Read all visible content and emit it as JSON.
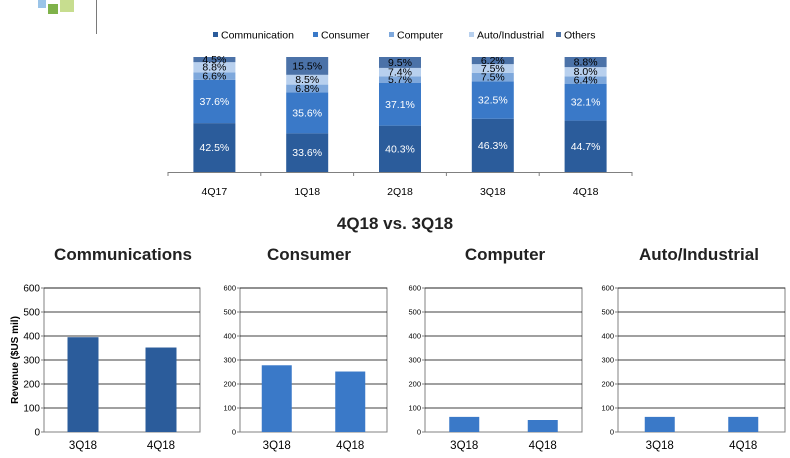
{
  "chart_data": [
    {
      "type": "bar",
      "stacked": true,
      "categories": [
        "4Q17",
        "1Q18",
        "2Q18",
        "3Q18",
        "4Q18"
      ],
      "series": [
        {
          "name": "Communication",
          "color": "#2b5c9b",
          "values": [
            42.5,
            33.6,
            40.3,
            46.3,
            44.7
          ]
        },
        {
          "name": "Consumer",
          "color": "#3a79c8",
          "values": [
            37.6,
            35.6,
            37.1,
            32.5,
            32.1
          ]
        },
        {
          "name": "Computer",
          "color": "#7ea8dc",
          "values": [
            6.6,
            6.8,
            5.7,
            7.5,
            6.4
          ]
        },
        {
          "name": "Auto/Industrial",
          "color": "#b8d0ee",
          "values": [
            8.8,
            8.5,
            7.4,
            7.5,
            8.0
          ]
        },
        {
          "name": "Others",
          "color": "#4b72a8",
          "values": [
            4.5,
            15.5,
            9.5,
            6.2,
            8.8
          ]
        }
      ],
      "value_labels": [
        [
          "42.5%",
          "37.6%",
          "6.6%",
          "8.8%",
          "4.5%"
        ],
        [
          "33.6%",
          "35.6%",
          "6.8%",
          "8.5%",
          "15.5%"
        ],
        [
          "40.3%",
          "37.1%",
          "5.7%",
          "7.4%",
          "9.5%"
        ],
        [
          "46.3%",
          "32.5%",
          "7.5%",
          "7.5%",
          "6.2%"
        ],
        [
          "44.7%",
          "32.1%",
          "6.4%",
          "8.0%",
          "8.8%"
        ]
      ],
      "ylim": [
        0,
        100
      ],
      "legend_position": "top"
    },
    {
      "type": "bar",
      "title": "Communications",
      "ylabel": "Revenue ($US mil)",
      "categories": [
        "3Q18",
        "4Q18"
      ],
      "values": [
        395,
        352
      ],
      "color": "#2b5c9b",
      "ylim": [
        0,
        600
      ],
      "yticks": [
        "0",
        "100",
        "200",
        "300",
        "400",
        "500",
        "600"
      ],
      "grid": true
    },
    {
      "type": "bar",
      "title": "Consumer",
      "categories": [
        "3Q18",
        "4Q18"
      ],
      "values": [
        278,
        252
      ],
      "color": "#3a79c8",
      "ylim": [
        0,
        600
      ],
      "yticks": [
        "0",
        "100",
        "200",
        "300",
        "400",
        "500",
        "600"
      ],
      "grid": true
    },
    {
      "type": "bar",
      "title": "Computer",
      "categories": [
        "3Q18",
        "4Q18"
      ],
      "values": [
        63,
        50
      ],
      "color": "#3a79c8",
      "ylim": [
        0,
        600
      ],
      "yticks": [
        "0",
        "100",
        "200",
        "300",
        "400",
        "500",
        "600"
      ],
      "grid": true
    },
    {
      "type": "bar",
      "title": "Auto/Industrial",
      "categories": [
        "3Q18",
        "4Q18"
      ],
      "values": [
        63,
        63
      ],
      "color": "#3a79c8",
      "ylim": [
        0,
        600
      ],
      "yticks": [
        "0",
        "100",
        "200",
        "300",
        "400",
        "500",
        "600"
      ],
      "grid": true
    }
  ],
  "comparison_title": "4Q18 vs. 3Q18"
}
